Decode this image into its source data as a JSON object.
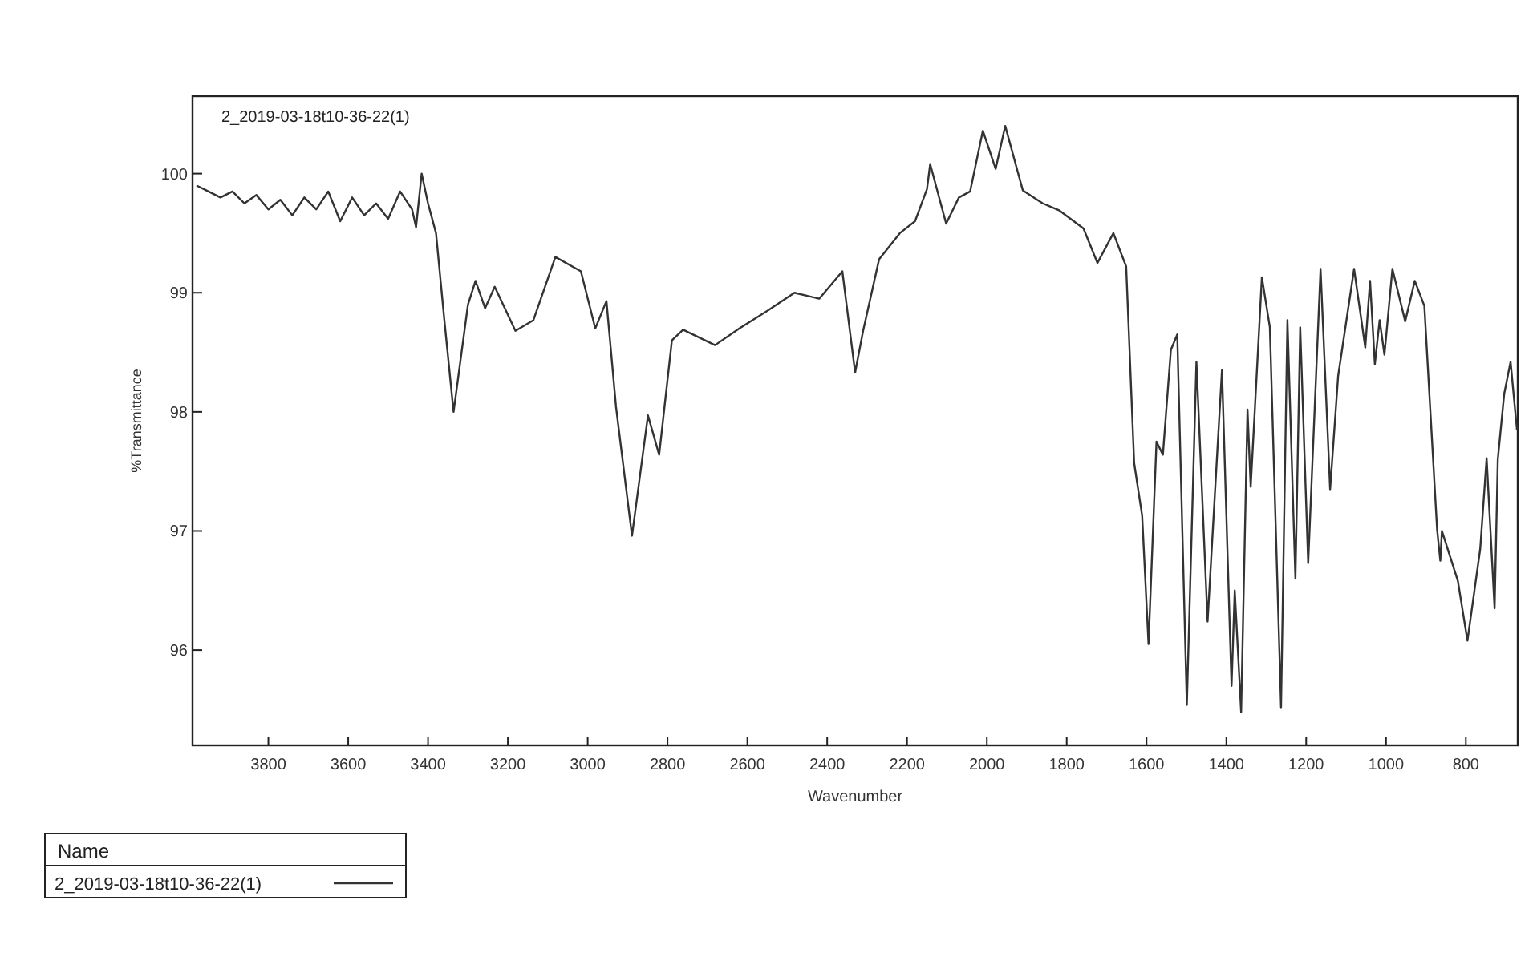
{
  "chart_data": {
    "type": "line",
    "title": "2_2019-03-18t10-36-22(1)",
    "xlabel": "Wavenumber",
    "ylabel": "%Transmittance",
    "legend_title": "Name",
    "legend": "bottom left",
    "grid": false,
    "line_style": "solid",
    "xlim": [
      3990,
      670
    ],
    "xticks": [
      3800,
      3600,
      3400,
      3200,
      3000,
      2800,
      2600,
      2400,
      2200,
      2000,
      1800,
      1600,
      1400,
      1200,
      1000,
      800
    ],
    "ylim": [
      95.2,
      100.65
    ],
    "yticks": [
      96,
      97,
      98,
      99,
      100
    ],
    "series": [
      {
        "name": "2_2019-03-18t10-36-22(1)",
        "color": "#333333",
        "x": [
          3980,
          3950,
          3920,
          3890,
          3860,
          3830,
          3800,
          3770,
          3740,
          3710,
          3680,
          3650,
          3620,
          3590,
          3560,
          3530,
          3500,
          3470,
          3440,
          3430,
          3416,
          3400,
          3380,
          3360,
          3336,
          3300,
          3281,
          3257,
          3233,
          3181,
          3136,
          3081,
          3017,
          2981,
          2953,
          2929,
          2889,
          2849,
          2821,
          2789,
          2761,
          2681,
          2620,
          2549,
          2482,
          2420,
          2362,
          2330,
          2310,
          2270,
          2218,
          2180,
          2150,
          2142,
          2102,
          2070,
          2042,
          2010,
          1978,
          1954,
          1910,
          1860,
          1818,
          1758,
          1723,
          1683,
          1651,
          1631,
          1611,
          1595,
          1575,
          1559,
          1539,
          1523,
          1499,
          1475,
          1447,
          1411,
          1387,
          1379,
          1363,
          1347,
          1339,
          1311,
          1291,
          1263,
          1247,
          1227,
          1215,
          1195,
          1164,
          1140,
          1120,
          1080,
          1052,
          1040,
          1028,
          1016,
          1004,
          984,
          952,
          928,
          904,
          872,
          864,
          860,
          820,
          796,
          764,
          748,
          728,
          720,
          704,
          688,
          672
        ],
        "values": [
          99.9,
          99.85,
          99.8,
          99.85,
          99.75,
          99.82,
          99.7,
          99.78,
          99.65,
          99.8,
          99.7,
          99.85,
          99.6,
          99.8,
          99.65,
          99.75,
          99.62,
          99.85,
          99.7,
          99.55,
          100.0,
          99.75,
          99.5,
          98.8,
          98.0,
          98.9,
          99.1,
          98.87,
          99.05,
          98.68,
          98.77,
          99.3,
          99.18,
          98.7,
          98.93,
          98.04,
          96.96,
          97.97,
          97.64,
          98.6,
          98.69,
          98.56,
          98.7,
          98.85,
          99.0,
          98.95,
          99.18,
          98.33,
          98.68,
          99.28,
          99.5,
          99.6,
          99.87,
          100.08,
          99.58,
          99.8,
          99.85,
          100.36,
          100.04,
          100.4,
          99.86,
          99.75,
          99.69,
          99.54,
          99.25,
          99.5,
          99.22,
          97.57,
          97.13,
          96.05,
          97.75,
          97.64,
          98.52,
          98.65,
          95.54,
          98.42,
          96.24,
          98.35,
          95.7,
          96.5,
          95.48,
          98.02,
          97.37,
          99.13,
          98.71,
          95.52,
          98.77,
          96.6,
          98.71,
          96.73,
          99.2,
          97.35,
          98.3,
          99.2,
          98.54,
          99.1,
          98.4,
          98.77,
          98.48,
          99.2,
          98.76,
          99.1,
          98.89,
          97.01,
          96.75,
          97.0,
          96.58,
          96.08,
          96.85,
          97.61,
          96.35,
          97.6,
          98.15,
          98.42,
          97.85
        ]
      }
    ]
  }
}
